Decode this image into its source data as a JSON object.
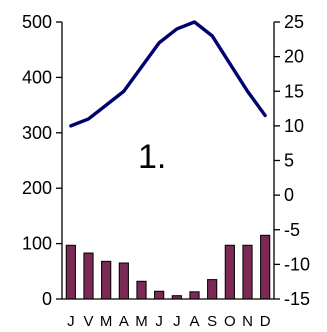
{
  "chart_data": {
    "type": "bar",
    "title": "",
    "annotation": "1.",
    "categories": [
      "J",
      "V",
      "M",
      "A",
      "M",
      "J",
      "J",
      "A",
      "S",
      "O",
      "N",
      "D"
    ],
    "series": [
      {
        "type": "bar",
        "axis": "left",
        "values": [
          97,
          83,
          68,
          65,
          32,
          14,
          6,
          13,
          35,
          97,
          97,
          115
        ]
      },
      {
        "type": "line",
        "axis": "right",
        "values": [
          10,
          11,
          13,
          15,
          18.5,
          22,
          24,
          25,
          23,
          19,
          15,
          11.5
        ]
      }
    ],
    "y_left": {
      "min": 0,
      "max": 500,
      "ticks": [
        0,
        100,
        200,
        300,
        400,
        500
      ]
    },
    "y_right": {
      "min": -15,
      "max": 25,
      "ticks": [
        -15,
        -10,
        -5,
        0,
        5,
        10,
        15,
        20,
        25
      ]
    },
    "grid": false,
    "legend": "none",
    "colors": {
      "bar": "#7a2a55",
      "line": "#00006e",
      "axis": "#000000"
    }
  }
}
